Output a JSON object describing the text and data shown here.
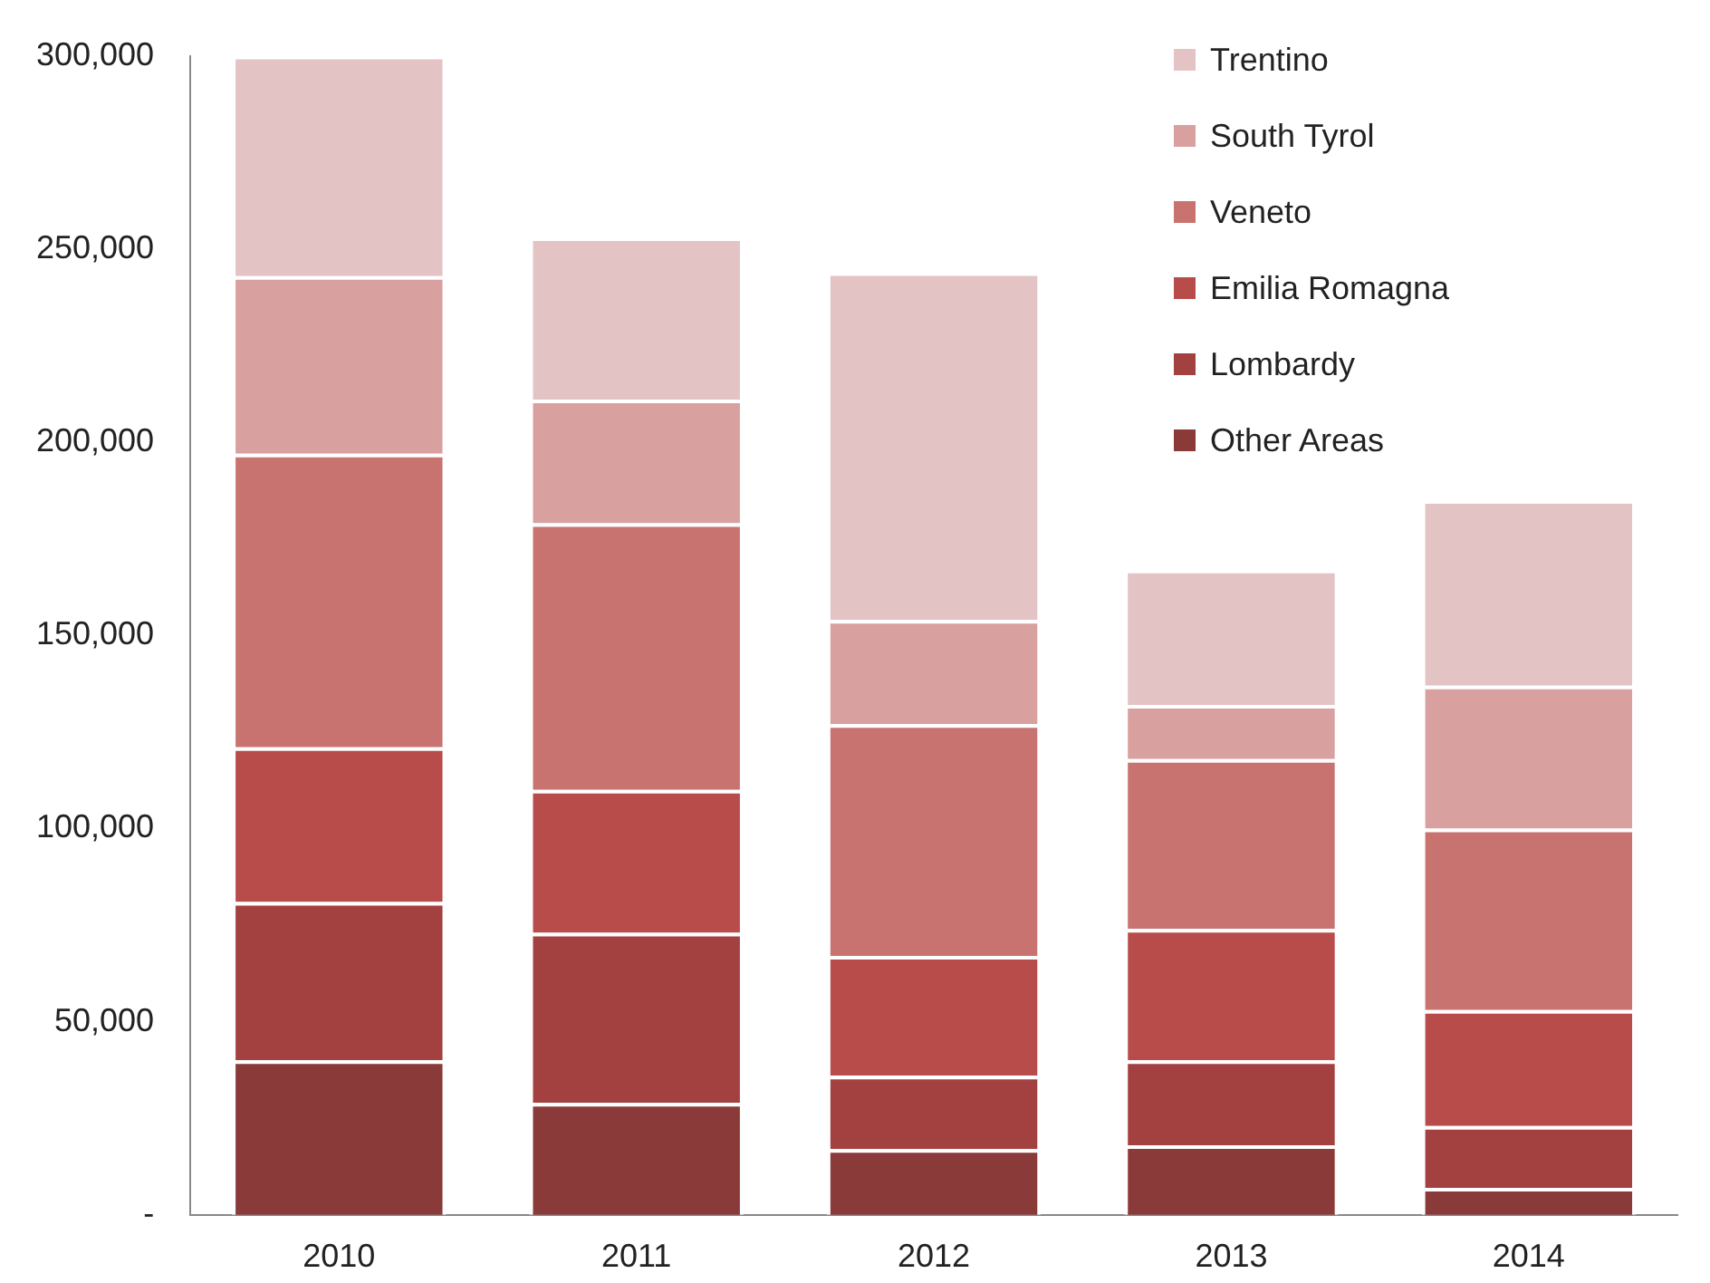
{
  "chart_data": {
    "type": "bar",
    "stacked": true,
    "categories": [
      "2010",
      "2011",
      "2012",
      "2013",
      "2014"
    ],
    "series": [
      {
        "name": "Other Areas",
        "color": "#8b3a3a",
        "values": [
          40000,
          29000,
          17000,
          18000,
          7000
        ]
      },
      {
        "name": "Lombardy",
        "color": "#a34040",
        "values": [
          41000,
          44000,
          19000,
          22000,
          16000
        ]
      },
      {
        "name": "Emilia Romagna",
        "color": "#b84c4a",
        "values": [
          40000,
          37000,
          31000,
          34000,
          30000
        ]
      },
      {
        "name": "Veneto",
        "color": "#c87370",
        "values": [
          76000,
          69000,
          60000,
          44000,
          47000
        ]
      },
      {
        "name": "South Tyrol",
        "color": "#d8a09e",
        "values": [
          46000,
          32000,
          27000,
          14000,
          37000
        ]
      },
      {
        "name": "Trentino",
        "color": "#e3c3c4",
        "values": [
          57000,
          42000,
          90000,
          35000,
          48000
        ]
      }
    ],
    "ylim": [
      0,
      300000
    ],
    "yticks": [
      {
        "value": 0,
        "label": "-"
      },
      {
        "value": 50000,
        "label": "50,000"
      },
      {
        "value": 100000,
        "label": "100,000"
      },
      {
        "value": 150000,
        "label": "150,000"
      },
      {
        "value": 200000,
        "label": "200,000"
      },
      {
        "value": 250000,
        "label": "250,000"
      },
      {
        "value": 300000,
        "label": "300,000"
      }
    ],
    "grid": false,
    "legend": "top right"
  }
}
